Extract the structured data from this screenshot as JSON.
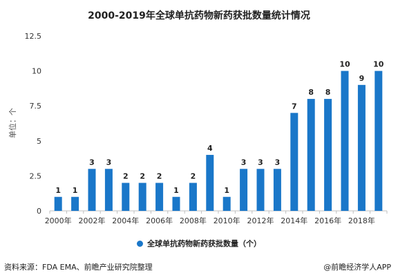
{
  "chart_data": {
    "type": "bar",
    "title": "2000-2019年全球单抗药物新药获批数量统计情况",
    "ylabel": "单位：个",
    "xlabel": "",
    "categories": [
      "2000年",
      "2001年",
      "2002年",
      "2003年",
      "2004年",
      "2005年",
      "2006年",
      "2007年",
      "2008年",
      "2009年",
      "2010年",
      "2011年",
      "2012年",
      "2013年",
      "2014年",
      "2015年",
      "2016年",
      "2017年",
      "2018年",
      "2019年"
    ],
    "x_tick_labels": [
      "2000年",
      "",
      "2002年",
      "",
      "2004年",
      "",
      "2006年",
      "",
      "2008年",
      "",
      "2010年",
      "",
      "2012年",
      "",
      "2014年",
      "",
      "2016年",
      "",
      "2018年",
      ""
    ],
    "series": [
      {
        "name": "全球单抗药物新药获批数量（个）",
        "values": [
          1,
          1,
          3,
          3,
          2,
          2,
          2,
          1,
          2,
          4,
          1,
          3,
          3,
          3,
          7,
          8,
          8,
          10,
          9,
          10
        ]
      }
    ],
    "ylim": [
      0,
      12.5
    ],
    "yticks": [
      0,
      2.5,
      5,
      7.5,
      10,
      12.5
    ],
    "ytick_labels": [
      "0",
      "2.5",
      "5",
      "7.5",
      "10",
      "12.5"
    ],
    "grid": false,
    "legend": "bottom",
    "bar_color": "#1a77c9"
  },
  "legend_label": "全球单抗药物新药获批数量（个）",
  "footer": {
    "source": "资料来源：FDA EMA、前瞻产业研究院整理",
    "brand": "@前瞻经济学人APP"
  }
}
